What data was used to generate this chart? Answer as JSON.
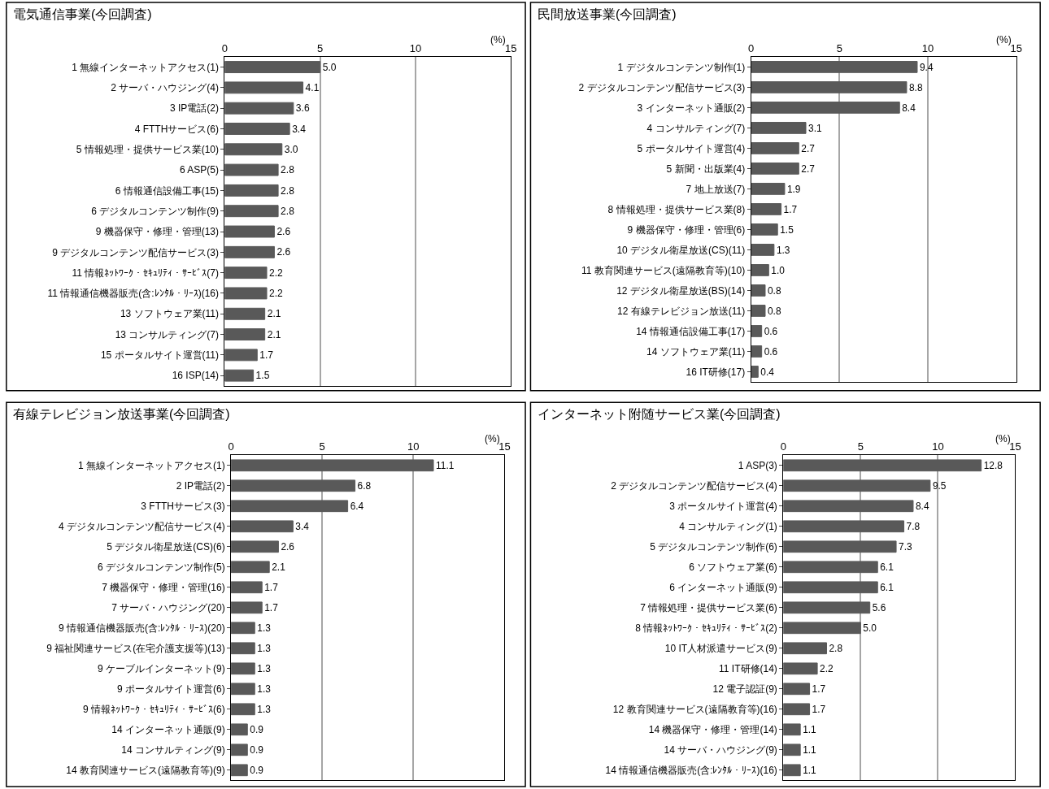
{
  "chart_data": [
    {
      "type": "bar",
      "orientation": "horizontal",
      "title": "電気通信事業(今回調査)",
      "xlabel": "(%)",
      "xlim": [
        0,
        15
      ],
      "xticks": [
        0,
        5,
        10,
        15
      ],
      "grid": "x",
      "data_labels": true,
      "legend": false,
      "color": "#595959",
      "categories": [
        "1 無線インターネットアクセス(1)",
        "2 サーバ・ハウジング(4)",
        "3 IP電話(2)",
        "4 FTTHサービス(6)",
        "5 情報処理・提供サービス業(10)",
        "6 ASP(5)",
        "6 情報通信設備工事(15)",
        "6 デジタルコンテンツ制作(9)",
        "9 機器保守・修理・管理(13)",
        "9 デジタルコンテンツ配信サービス(3)",
        "11 情報ﾈｯﾄﾜｰｸ・ｾｷｭﾘﾃｨ・ｻｰﾋﾞｽ(7)",
        "11 情報通信機器販売(含:ﾚﾝﾀﾙ・ﾘｰｽ)(16)",
        "13 ソフトウェア業(11)",
        "13 コンサルティング(7)",
        "15 ポータルサイト運営(11)",
        "16 ISP(14)"
      ],
      "values": [
        5.0,
        4.1,
        3.6,
        3.4,
        3.0,
        2.8,
        2.8,
        2.8,
        2.6,
        2.6,
        2.2,
        2.2,
        2.1,
        2.1,
        1.7,
        1.5
      ],
      "value_labels": [
        "5.0",
        "4.1",
        "3.6",
        "3.4",
        "3.0",
        "2.8",
        "2.8",
        "2.8",
        "2.6",
        "2.6",
        "2.2",
        "2.2",
        "2.1",
        "2.1",
        "1.7",
        "1.5"
      ]
    },
    {
      "type": "bar",
      "orientation": "horizontal",
      "title": "民間放送事業(今回調査)",
      "xlabel": "(%)",
      "xlim": [
        0,
        15
      ],
      "xticks": [
        0,
        5,
        10,
        15
      ],
      "grid": "x",
      "data_labels": true,
      "legend": false,
      "color": "#595959",
      "categories": [
        "1 デジタルコンテンツ制作(1)",
        "2 デジタルコンテンツ配信サービス(3)",
        "3 インターネット通販(2)",
        "4 コンサルティング(7)",
        "5 ポータルサイト運営(4)",
        "5 新聞・出版業(4)",
        "7 地上放送(7)",
        "8 情報処理・提供サービス業(8)",
        "9 機器保守・修理・管理(6)",
        "10 デジタル衛星放送(CS)(11)",
        "11 教育関連サービス(遠隔教育等)(10)",
        "12 デジタル衛星放送(BS)(14)",
        "12 有線テレビジョン放送(11)",
        "14 情報通信設備工事(17)",
        "14 ソフトウェア業(11)",
        "16 IT研修(17)"
      ],
      "values": [
        9.4,
        8.8,
        8.4,
        3.1,
        2.7,
        2.7,
        1.9,
        1.7,
        1.5,
        1.3,
        1.0,
        0.8,
        0.8,
        0.6,
        0.6,
        0.4
      ],
      "value_labels": [
        "9.4",
        "8.8",
        "8.4",
        "3.1",
        "2.7",
        "2.7",
        "1.9",
        "1.7",
        "1.5",
        "1.3",
        "1.0",
        "0.8",
        "0.8",
        "0.6",
        "0.6",
        "0.4"
      ]
    },
    {
      "type": "bar",
      "orientation": "horizontal",
      "title": "有線テレビジョン放送事業(今回調査)",
      "xlabel": "(%)",
      "xlim": [
        0,
        15
      ],
      "xticks": [
        0,
        5,
        10,
        15
      ],
      "grid": "x",
      "data_labels": true,
      "legend": false,
      "color": "#595959",
      "categories": [
        "1 無線インターネットアクセス(1)",
        "2 IP電話(2)",
        "3 FTTHサービス(3)",
        "4 デジタルコンテンツ配信サービス(4)",
        "5 デジタル衛星放送(CS)(6)",
        "6 デジタルコンテンツ制作(5)",
        "7 機器保守・修理・管理(16)",
        "7 サーバ・ハウジング(20)",
        "9 情報通信機器販売(含:ﾚﾝﾀﾙ・ﾘｰｽ)(20)",
        "9 福祉関連サービス(在宅介護支援等)(13)",
        "9 ケーブルインターネット(9)",
        "9 ポータルサイト運営(6)",
        "9 情報ﾈｯﾄﾜｰｸ・ｾｷｭﾘﾃｨ・ｻｰﾋﾞｽ(6)",
        "14 インターネット通販(9)",
        "14 コンサルティング(9)",
        "14 教育関連サービス(遠隔教育等)(9)"
      ],
      "values": [
        11.1,
        6.8,
        6.4,
        3.4,
        2.6,
        2.1,
        1.7,
        1.7,
        1.3,
        1.3,
        1.3,
        1.3,
        1.3,
        0.9,
        0.9,
        0.9
      ]
    },
    {
      "type": "bar",
      "orientation": "horizontal",
      "title": "インターネット附随サービス業(今回調査)",
      "xlabel": "(%)",
      "xlim": [
        0,
        15
      ],
      "xticks": [
        0,
        5,
        10,
        15
      ],
      "grid": "x",
      "data_labels": true,
      "legend": false,
      "color": "#595959",
      "categories": [
        "1 ASP(3)",
        "2 デジタルコンテンツ配信サービス(4)",
        "3 ポータルサイト運営(4)",
        "4 コンサルティング(1)",
        "5 デジタルコンテンツ制作(6)",
        "6 ソフトウェア業(6)",
        "6 インターネット通販(9)",
        "7 情報処理・提供サービス業(6)",
        "8 情報ﾈｯﾄﾜｰｸ・ｾｷｭﾘﾃｨ・ｻｰﾋﾞｽ(2)",
        "10 IT人材派遣サービス(9)",
        "11 IT研修(14)",
        "12 電子認証(9)",
        "12 教育関連サービス(遠隔教育等)(16)",
        "14 機器保守・修理・管理(14)",
        "14 サーバ・ハウジング(9)",
        "14 情報通信機器販売(含:ﾚﾝﾀﾙ・ﾘｰｽ)(16)"
      ],
      "values": [
        12.8,
        9.5,
        8.4,
        7.8,
        7.3,
        6.1,
        6.1,
        5.6,
        5.0,
        2.8,
        2.2,
        1.7,
        1.7,
        1.1,
        1.1,
        1.1
      ],
      "value_labels": [
        "12.8",
        "9.5",
        "8.4",
        "7.8",
        "7.3",
        "6.1",
        "6.1",
        "5.6",
        "5.0",
        "2.8",
        "2.2",
        "1.7",
        "1.7",
        "1.1",
        "1.1",
        "1.1"
      ]
    }
  ]
}
